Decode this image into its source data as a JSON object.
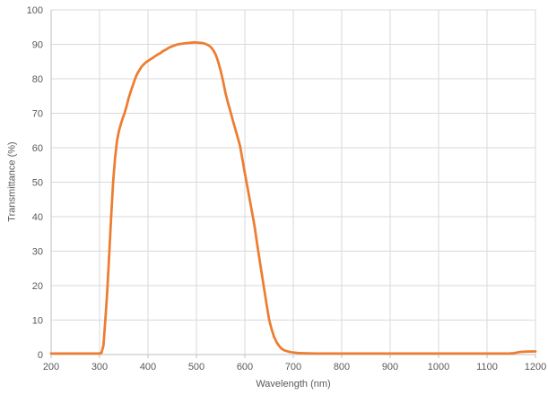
{
  "chart_data": {
    "type": "line",
    "title": "",
    "xlabel": "Wavelength (nm)",
    "ylabel": "Transmittance (%)",
    "xlim": [
      200,
      1200
    ],
    "ylim": [
      0,
      100
    ],
    "x_ticks": [
      "200",
      "300",
      "400",
      "500",
      "600",
      "700",
      "800",
      "900",
      "1000",
      "1100",
      "1200"
    ],
    "x_tick_values": [
      200,
      300,
      400,
      500,
      600,
      700,
      800,
      900,
      1000,
      1100,
      1200
    ],
    "y_ticks": [
      "0",
      "10",
      "20",
      "30",
      "40",
      "50",
      "60",
      "70",
      "80",
      "90",
      "100"
    ],
    "y_tick_values": [
      0,
      10,
      20,
      30,
      40,
      50,
      60,
      70,
      80,
      90,
      100
    ],
    "grid": true,
    "legend": "none",
    "series": [
      {
        "name": "Transmittance",
        "color": "#ED7D31",
        "points": [
          [
            200,
            0.3
          ],
          [
            215,
            0.3
          ],
          [
            230,
            0.3
          ],
          [
            245,
            0.3
          ],
          [
            260,
            0.3
          ],
          [
            275,
            0.3
          ],
          [
            290,
            0.3
          ],
          [
            300,
            0.3
          ],
          [
            304,
            0.5
          ],
          [
            308,
            2.5
          ],
          [
            312,
            10
          ],
          [
            316,
            18.5
          ],
          [
            320,
            29
          ],
          [
            324,
            40
          ],
          [
            328,
            50
          ],
          [
            332,
            57
          ],
          [
            336,
            62
          ],
          [
            340,
            65
          ],
          [
            344,
            67
          ],
          [
            348,
            68.8
          ],
          [
            352,
            70.3
          ],
          [
            356,
            72.2
          ],
          [
            360,
            74.4
          ],
          [
            364,
            76.1
          ],
          [
            368,
            77.7
          ],
          [
            372,
            79.3
          ],
          [
            376,
            80.8
          ],
          [
            380,
            81.9
          ],
          [
            384,
            82.8
          ],
          [
            388,
            83.7
          ],
          [
            392,
            84.3
          ],
          [
            396,
            84.9
          ],
          [
            400,
            85.3
          ],
          [
            405,
            85.8
          ],
          [
            410,
            86.2
          ],
          [
            415,
            86.7
          ],
          [
            420,
            87.1
          ],
          [
            425,
            87.4
          ],
          [
            430,
            87.9
          ],
          [
            435,
            88.2
          ],
          [
            440,
            88.6
          ],
          [
            445,
            89.0
          ],
          [
            450,
            89.3
          ],
          [
            455,
            89.6
          ],
          [
            460,
            89.9
          ],
          [
            465,
            90.1
          ],
          [
            470,
            90.25
          ],
          [
            475,
            90.4
          ],
          [
            480,
            90.5
          ],
          [
            485,
            90.55
          ],
          [
            490,
            90.6
          ],
          [
            495,
            90.6
          ],
          [
            500,
            90.5
          ],
          [
            505,
            90.4
          ],
          [
            510,
            90.3
          ],
          [
            515,
            90.15
          ],
          [
            520,
            89.9
          ],
          [
            525,
            89.6
          ],
          [
            530,
            89.1
          ],
          [
            535,
            88.2
          ],
          [
            540,
            87.0
          ],
          [
            545,
            85.0
          ],
          [
            550,
            82.5
          ],
          [
            555,
            79.5
          ],
          [
            560,
            76.0
          ],
          [
            565,
            73.2
          ],
          [
            570,
            70.7
          ],
          [
            575,
            68.0
          ],
          [
            580,
            65.5
          ],
          [
            585,
            63.0
          ],
          [
            590,
            60.4
          ],
          [
            595,
            56.5
          ],
          [
            600,
            52.5
          ],
          [
            605,
            48.8
          ],
          [
            610,
            45.0
          ],
          [
            615,
            41.2
          ],
          [
            620,
            37.4
          ],
          [
            625,
            32.6
          ],
          [
            630,
            28.0
          ],
          [
            635,
            23.5
          ],
          [
            640,
            19.0
          ],
          [
            645,
            14.5
          ],
          [
            650,
            10.2
          ],
          [
            655,
            7.4
          ],
          [
            660,
            5.1
          ],
          [
            665,
            3.6
          ],
          [
            670,
            2.5
          ],
          [
            675,
            1.8
          ],
          [
            680,
            1.35
          ],
          [
            685,
            1.05
          ],
          [
            690,
            0.85
          ],
          [
            695,
            0.7
          ],
          [
            700,
            0.6
          ],
          [
            710,
            0.45
          ],
          [
            720,
            0.38
          ],
          [
            735,
            0.32
          ],
          [
            750,
            0.3
          ],
          [
            775,
            0.3
          ],
          [
            800,
            0.3
          ],
          [
            850,
            0.3
          ],
          [
            900,
            0.3
          ],
          [
            950,
            0.3
          ],
          [
            1000,
            0.3
          ],
          [
            1050,
            0.3
          ],
          [
            1100,
            0.28
          ],
          [
            1125,
            0.28
          ],
          [
            1145,
            0.3
          ],
          [
            1155,
            0.4
          ],
          [
            1162,
            0.6
          ],
          [
            1168,
            0.75
          ],
          [
            1175,
            0.82
          ],
          [
            1185,
            0.88
          ],
          [
            1200,
            0.92
          ]
        ]
      }
    ]
  },
  "colors": {
    "background": "#FFFFFF",
    "gridline": "#D9D9D9",
    "axis_line": "#BFBFBF",
    "tick_label": "#595959",
    "axis_title": "#595959",
    "line": "#ED7D31"
  }
}
